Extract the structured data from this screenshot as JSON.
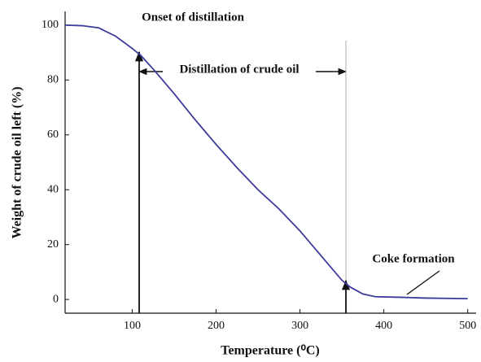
{
  "chart_data": {
    "type": "line",
    "xlabel": "Temperature (⁰C)",
    "ylabel": "Weight of crude oil left (%)",
    "annotations": [
      "Onset of distillation",
      "Distillation of crude oil",
      "Coke formation"
    ],
    "x": [
      20,
      40,
      60,
      80,
      100,
      110,
      125,
      150,
      175,
      200,
      225,
      250,
      275,
      300,
      325,
      350,
      360,
      375,
      390,
      420,
      450,
      500
    ],
    "series": [
      {
        "color": "#3b3b9c",
        "values": [
          100,
          99.8,
          99,
          96,
          91.5,
          89,
          84,
          75,
          65.5,
          56.5,
          48,
          40,
          33,
          25,
          16,
          7,
          4.5,
          2,
          1,
          0.8,
          0.5,
          0.3
        ]
      }
    ],
    "xlim": [
      20,
      510
    ],
    "ylim": [
      -5,
      105
    ],
    "xticks": [
      100,
      200,
      300,
      400,
      500
    ],
    "yticks": [
      0,
      20,
      40,
      60,
      80,
      100
    ],
    "grid": false
  }
}
